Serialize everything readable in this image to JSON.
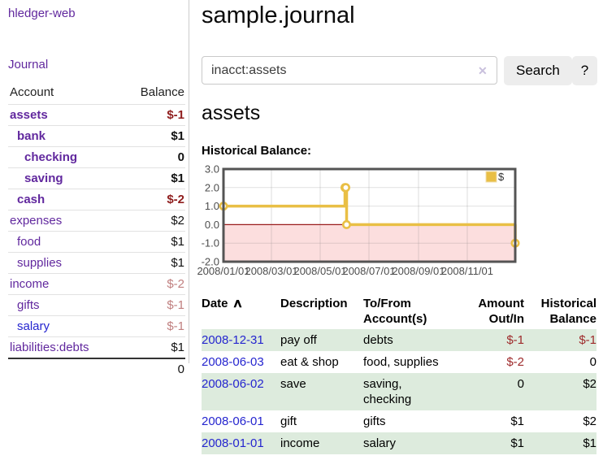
{
  "app": {
    "brand": "hledger-web",
    "nav_journal": "Journal"
  },
  "sidebar": {
    "columns": {
      "account": "Account",
      "balance": "Balance"
    },
    "accounts": [
      {
        "name": "assets",
        "depth": 1,
        "bold": true,
        "blue": false,
        "balance": "$-1",
        "neg": true
      },
      {
        "name": "bank",
        "depth": 2,
        "bold": true,
        "blue": false,
        "balance": "$1",
        "neg": false
      },
      {
        "name": "checking",
        "depth": 3,
        "bold": true,
        "blue": false,
        "balance": "0",
        "neg": false
      },
      {
        "name": "saving",
        "depth": 3,
        "bold": true,
        "blue": false,
        "balance": "$1",
        "neg": false
      },
      {
        "name": "cash",
        "depth": 2,
        "bold": true,
        "blue": false,
        "balance": "$-2",
        "neg": true
      },
      {
        "name": "expenses",
        "depth": 1,
        "bold": false,
        "blue": false,
        "balance": "$2",
        "neg": false
      },
      {
        "name": "food",
        "depth": 2,
        "bold": false,
        "blue": false,
        "balance": "$1",
        "neg": false
      },
      {
        "name": "supplies",
        "depth": 2,
        "bold": false,
        "blue": false,
        "balance": "$1",
        "neg": false
      },
      {
        "name": "income",
        "depth": 1,
        "bold": false,
        "blue": false,
        "balance": "$-2",
        "neg": true
      },
      {
        "name": "gifts",
        "depth": 2,
        "bold": false,
        "blue": false,
        "balance": "$-1",
        "neg": true
      },
      {
        "name": "salary",
        "depth": 2,
        "bold": false,
        "blue": true,
        "balance": "$-1",
        "neg": true
      },
      {
        "name": "liabilities:debts",
        "depth": 1,
        "bold": false,
        "blue": false,
        "balance": "$1",
        "neg": false
      }
    ],
    "total": "0"
  },
  "header": {
    "title": "sample.journal"
  },
  "search": {
    "value": "inacct:assets",
    "clear_icon": "✕",
    "button_label": "Search",
    "help_label": "?"
  },
  "account_page": {
    "heading": "assets",
    "chart_label": "Historical Balance:"
  },
  "chart_data": {
    "type": "line",
    "steps": true,
    "title": "Historical Balance of assets",
    "series": [
      {
        "name": "$",
        "color": "#e9bf45",
        "points": [
          [
            "2008-01-01",
            1
          ],
          [
            "2008-06-01",
            2
          ],
          [
            "2008-06-02",
            2
          ],
          [
            "2008-06-03",
            0
          ],
          [
            "2008-12-31",
            -1
          ]
        ]
      }
    ],
    "xlim": [
      "2008-01-01",
      "2008-12-31"
    ],
    "ylim": [
      -2,
      3
    ],
    "y_ticks": [
      3.0,
      2.0,
      1.0,
      0.0,
      -1.0,
      -2.0
    ],
    "x_ticks": [
      "2008/01/01",
      "2008/03/01",
      "2008/05/01",
      "2008/07/01",
      "2008/09/01",
      "2008/11/01"
    ],
    "legend_position": "top-right",
    "grid": true,
    "negative_region_fill": "#fcdede",
    "zero_line_color": "#991c1c"
  },
  "transactions": {
    "columns": {
      "date": "Date",
      "sort_arrow": "∧",
      "description": "Description",
      "accounts": "To/From\nAccount(s)",
      "amount": "Amount\nOut/In",
      "balance": "Historical\nBalance"
    },
    "rows": [
      {
        "date": "2008-12-31",
        "description": "pay off",
        "accounts": "debts",
        "amount": "$-1",
        "amount_neg": true,
        "balance": "$-1",
        "balance_neg": true
      },
      {
        "date": "2008-06-03",
        "description": "eat & shop",
        "accounts": "food, supplies",
        "amount": "$-2",
        "amount_neg": true,
        "balance": "0",
        "balance_neg": false
      },
      {
        "date": "2008-06-02",
        "description": "save",
        "accounts": "saving,\nchecking",
        "amount": "0",
        "amount_neg": false,
        "balance": "$2",
        "balance_neg": false
      },
      {
        "date": "2008-06-01",
        "description": "gift",
        "accounts": "gifts",
        "amount": "$1",
        "amount_neg": false,
        "balance": "$2",
        "balance_neg": false
      },
      {
        "date": "2008-01-01",
        "description": "income",
        "accounts": "salary",
        "amount": "$1",
        "amount_neg": false,
        "balance": "$1",
        "balance_neg": false
      }
    ]
  }
}
